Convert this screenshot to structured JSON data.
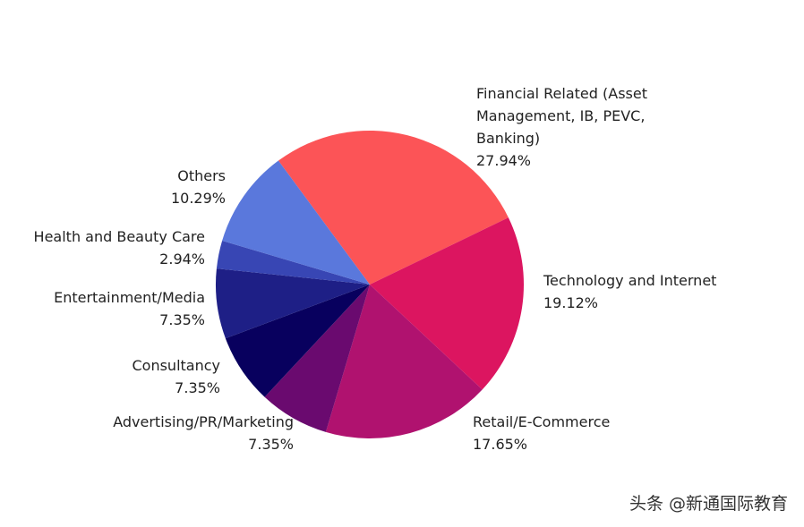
{
  "chart_data": {
    "type": "pie",
    "categories": [
      "Financial Related (Asset Management, IB, PEVC, Banking)",
      "Technology and Internet",
      "Retail/E-Commerce",
      "Advertising/PR/Marketing",
      "Consultancy",
      "Entertainment/Media",
      "Health and Beauty Care",
      "Others"
    ],
    "values": [
      27.94,
      19.12,
      17.65,
      7.35,
      7.35,
      7.35,
      2.94,
      10.29
    ],
    "value_labels": [
      "27.94%",
      "19.12%",
      "17.65%",
      "7.35%",
      "7.35%",
      "7.35%",
      "2.94%",
      "10.29%"
    ],
    "colors": [
      "#fc5457",
      "#dc1560",
      "#b0126f",
      "#6a0a6f",
      "#08005e",
      "#1e1f86",
      "#3846b4",
      "#5a78dc"
    ]
  },
  "watermark": "头条 @新通国际教育"
}
